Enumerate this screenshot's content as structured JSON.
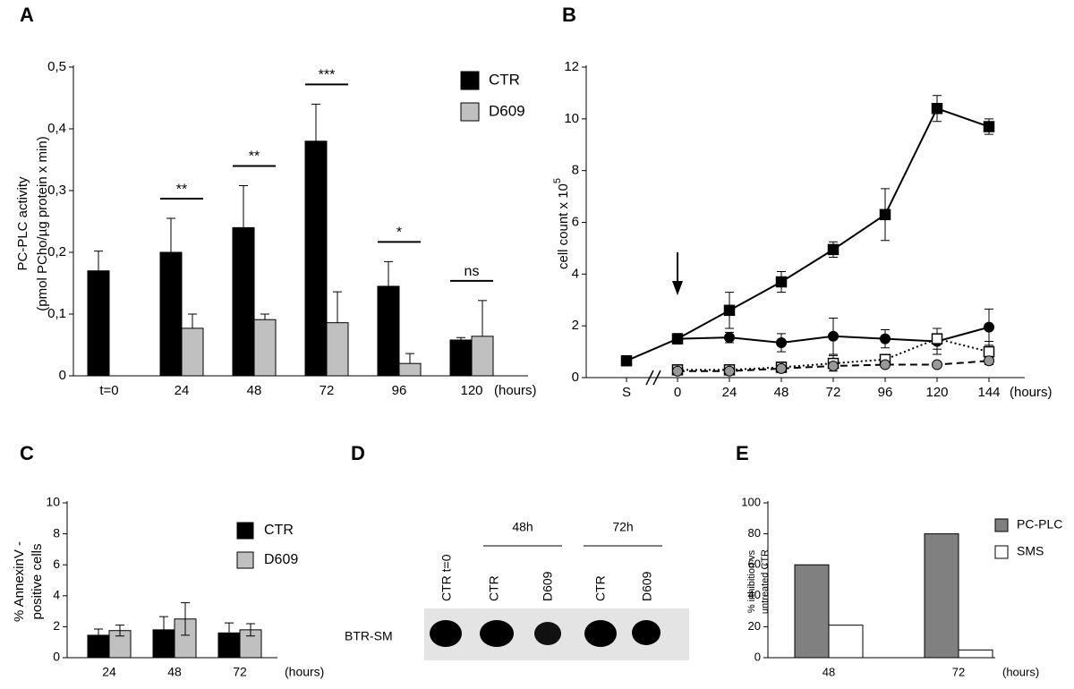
{
  "chart_data": [
    {
      "panel": "A",
      "type": "bar",
      "y_label": [
        "PC-PLC activity",
        "(pmol PCho/µg protein x min)"
      ],
      "categories": [
        "t=0",
        "24",
        "48",
        "72",
        "96",
        "120"
      ],
      "x_unit": "(hours)",
      "series": [
        {
          "name": "CTR",
          "color": "#000000",
          "values": [
            0.17,
            0.2,
            0.24,
            0.38,
            0.145,
            0.058
          ],
          "errors": [
            0.032,
            0.055,
            0.068,
            0.06,
            0.04,
            0.004
          ]
        },
        {
          "name": "D609",
          "color": "#c0c0c0",
          "values": [
            null,
            0.077,
            0.091,
            0.086,
            0.02,
            0.064
          ],
          "errors": [
            null,
            0.023,
            0.009,
            0.05,
            0.016,
            0.058
          ]
        }
      ],
      "annotations": [
        null,
        "**",
        "**",
        "***",
        "*",
        "ns"
      ],
      "ylim": [
        0,
        0.5
      ],
      "yticks": [
        0,
        {
          "value": 0.1,
          "label": "0,1"
        },
        {
          "value": 0.2,
          "label": "0,2"
        },
        {
          "value": 0.3,
          "label": "0,3"
        },
        {
          "value": 0.4,
          "label": "0,4"
        },
        {
          "value": 0.5,
          "label": "0,5"
        }
      ],
      "legend": "top-right"
    },
    {
      "panel": "B",
      "type": "line",
      "y_label": "cell count x 10",
      "y_label_superscript": "5",
      "categories": [
        "S",
        "0",
        "24",
        "48",
        "72",
        "96",
        "120",
        "144"
      ],
      "x_unit": "(hours)",
      "series": [
        {
          "color": "#000000",
          "marker": "square-filled",
          "line": "solid",
          "values": [
            0.65,
            1.5,
            2.6,
            3.7,
            4.95,
            6.3,
            10.4,
            9.7
          ],
          "errors": [
            0.1,
            0.2,
            0.7,
            0.4,
            0.3,
            1.0,
            0.5,
            0.3
          ]
        },
        {
          "color": "#000000",
          "marker": "circle-filled",
          "line": "solid",
          "values": [
            null,
            1.5,
            1.55,
            1.35,
            1.6,
            1.5,
            1.4,
            1.95
          ],
          "errors": [
            null,
            0.2,
            0.2,
            0.35,
            0.7,
            0.35,
            0.5,
            0.7
          ]
        },
        {
          "color": "#000000",
          "marker": "square-open",
          "line": "dotted",
          "values": [
            null,
            0.3,
            0.3,
            0.4,
            0.55,
            0.7,
            1.5,
            1.0
          ],
          "errors": [
            null,
            0.1,
            0.15,
            0.2,
            0.3,
            0.1,
            0.4,
            0.4
          ]
        },
        {
          "color": "#999999",
          "marker": "circle-gray",
          "line": "dashed",
          "values": [
            null,
            0.25,
            0.25,
            0.35,
            0.45,
            0.5,
            0.5,
            0.65
          ],
          "errors": [
            null,
            0.1,
            0.1,
            0.1,
            0.1,
            0.1,
            0.1,
            0.15
          ]
        }
      ],
      "ylim": [
        0,
        12
      ],
      "yticks": [
        0,
        2,
        4,
        6,
        8,
        10,
        12
      ],
      "axis_break": true
    },
    {
      "panel": "C",
      "type": "bar",
      "y_label": [
        "% AnnexinV -",
        "positive cells"
      ],
      "categories": [
        "24",
        "48",
        "72"
      ],
      "x_unit": "(hours)",
      "series": [
        {
          "name": "CTR",
          "color": "#000000",
          "values": [
            1.45,
            1.8,
            1.6
          ],
          "errors": [
            0.4,
            0.85,
            0.65
          ]
        },
        {
          "name": "D609",
          "color": "#c0c0c0",
          "values": [
            1.75,
            2.5,
            1.8
          ],
          "errors": [
            0.35,
            1.05,
            0.4
          ]
        }
      ],
      "ylim": [
        0,
        10
      ],
      "yticks": [
        0,
        2,
        4,
        6,
        8,
        10
      ],
      "legend": "top-right"
    },
    {
      "panel": "E",
      "type": "bar",
      "y_label": [
        "% inhibition vs",
        "untreated CTR"
      ],
      "categories": [
        "48",
        "72"
      ],
      "x_unit": "(hours)",
      "series": [
        {
          "name": "PC-PLC",
          "color": "#808080",
          "values": [
            60,
            80
          ]
        },
        {
          "name": "SMS",
          "color": "#ffffff",
          "values": [
            21,
            5
          ]
        }
      ],
      "ylim": [
        0,
        100
      ],
      "yticks": [
        0,
        20,
        40,
        60,
        80,
        100
      ],
      "legend": "right"
    }
  ],
  "blot": {
    "panel": "D",
    "lane_labels": [
      "CTR t=0",
      "CTR",
      "D609",
      "CTR",
      "D609"
    ],
    "group_labels": [
      "48h",
      "72h"
    ],
    "row_label": "BTR-SM"
  }
}
